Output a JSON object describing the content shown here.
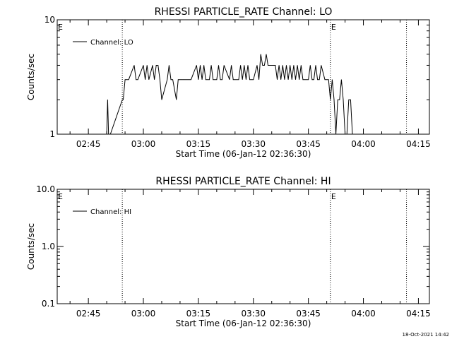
{
  "footer_date": "18-Oct-2021 14:42",
  "chart_data": [
    {
      "type": "line",
      "title": "RHESSI PARTICLE_RATE Channel: LO",
      "xlabel": "Start Time (06-Jan-12 02:36:30)",
      "ylabel": "Counts/sec",
      "y_scale": "log",
      "ylim": [
        1,
        10
      ],
      "xlim": [
        "02:36:30",
        "04:18:00"
      ],
      "y_ticks": [
        "1",
        "10"
      ],
      "x_ticks": [
        "02:45",
        "03:00",
        "03:15",
        "03:30",
        "03:45",
        "04:00",
        "04:15"
      ],
      "legend": {
        "placement": "top-left",
        "entries": [
          "Channel: LO"
        ]
      },
      "markers": [
        {
          "label": "E",
          "x": "02:36:30",
          "line": false
        },
        {
          "label": "",
          "x": "02:54:15",
          "line": true
        },
        {
          "label": "E",
          "x": "03:51:00",
          "line": true
        },
        {
          "label": "",
          "x": "04:11:45",
          "line": true
        }
      ],
      "series": [
        {
          "name": "Channel: LO",
          "x": [
            "02:50:00",
            "02:50:15",
            "02:50:30",
            "02:50:45",
            "02:51:00",
            "02:54:15",
            "02:54:30",
            "02:55:00",
            "02:55:30",
            "02:56:00",
            "02:57:30",
            "02:58:00",
            "02:58:30",
            "03:00:00",
            "03:00:30",
            "03:01:00",
            "03:01:30",
            "03:02:30",
            "03:03:00",
            "03:03:30",
            "03:04:00",
            "03:04:30",
            "03:05:00",
            "03:06:30",
            "03:07:00",
            "03:07:30",
            "03:08:00",
            "03:09:00",
            "03:09:30",
            "03:10:00",
            "03:10:30",
            "03:11:00",
            "03:12:30",
            "03:13:00",
            "03:14:30",
            "03:15:00",
            "03:15:30",
            "03:16:00",
            "03:16:30",
            "03:17:00",
            "03:18:00",
            "03:18:30",
            "03:19:00",
            "03:20:00",
            "03:20:30",
            "03:21:00",
            "03:21:30",
            "03:22:00",
            "03:23:30",
            "03:24:00",
            "03:24:30",
            "03:25:00",
            "03:26:00",
            "03:26:30",
            "03:27:00",
            "03:27:30",
            "03:28:00",
            "03:28:30",
            "03:29:00",
            "03:30:00",
            "03:31:00",
            "03:31:30",
            "03:32:00",
            "03:32:30",
            "03:33:00",
            "03:33:30",
            "03:34:00",
            "03:34:30",
            "03:35:00",
            "03:36:00",
            "03:36:30",
            "03:37:00",
            "03:37:30",
            "03:38:00",
            "03:38:30",
            "03:39:00",
            "03:39:30",
            "03:40:00",
            "03:40:30",
            "03:41:00",
            "03:41:30",
            "03:42:00",
            "03:42:30",
            "03:43:00",
            "03:43:30",
            "03:44:00",
            "03:45:00",
            "03:45:30",
            "03:46:00",
            "03:46:30",
            "03:47:00",
            "03:47:30",
            "03:48:00",
            "03:48:30",
            "03:49:30",
            "03:50:00",
            "03:50:30",
            "03:51:00",
            "03:51:30",
            "03:52:00",
            "03:52:30",
            "03:53:00",
            "03:53:30",
            "03:54:00",
            "03:54:30",
            "03:55:00",
            "03:55:30",
            "03:56:00",
            "03:56:30",
            "03:57:00"
          ],
          "values": [
            1,
            2,
            1,
            1,
            1,
            2,
            2,
            3,
            3,
            3,
            4,
            3,
            3,
            4,
            3,
            4,
            3,
            4,
            3,
            4,
            4,
            3,
            2,
            3,
            4,
            3,
            3,
            2,
            3,
            3,
            3,
            3,
            3,
            3,
            4,
            3,
            4,
            3,
            4,
            3,
            3,
            4,
            3,
            3,
            4,
            3,
            3,
            4,
            3,
            4,
            3,
            3,
            3,
            4,
            3,
            4,
            3,
            4,
            3,
            3,
            4,
            3,
            5,
            4,
            4,
            5,
            4,
            4,
            4,
            4,
            3,
            4,
            3,
            4,
            3,
            4,
            3,
            4,
            3,
            4,
            3,
            4,
            3,
            4,
            3,
            3,
            3,
            4,
            3,
            3,
            4,
            3,
            3,
            4,
            3,
            3,
            3,
            2,
            3,
            2,
            1,
            2,
            2,
            3,
            2,
            1,
            1,
            2,
            2,
            1
          ]
        }
      ]
    },
    {
      "type": "line",
      "title": "RHESSI PARTICLE_RATE Channel: HI",
      "xlabel": "Start Time (06-Jan-12 02:36:30)",
      "ylabel": "Counts/sec",
      "y_scale": "log",
      "ylim": [
        0.1,
        10
      ],
      "xlim": [
        "02:36:30",
        "04:18:00"
      ],
      "y_ticks": [
        "0.1",
        "1.0",
        "10.0"
      ],
      "x_ticks": [
        "02:45",
        "03:00",
        "03:15",
        "03:30",
        "03:45",
        "04:00",
        "04:15"
      ],
      "legend": {
        "placement": "top-left",
        "entries": [
          "Channel: HI"
        ]
      },
      "markers": [
        {
          "label": "E",
          "x": "02:36:30",
          "line": false
        },
        {
          "label": "",
          "x": "02:54:15",
          "line": true
        },
        {
          "label": "E",
          "x": "03:51:00",
          "line": true
        },
        {
          "label": "",
          "x": "04:11:45",
          "line": true
        }
      ],
      "series": [
        {
          "name": "Channel: HI",
          "x": [],
          "values": []
        }
      ]
    }
  ]
}
